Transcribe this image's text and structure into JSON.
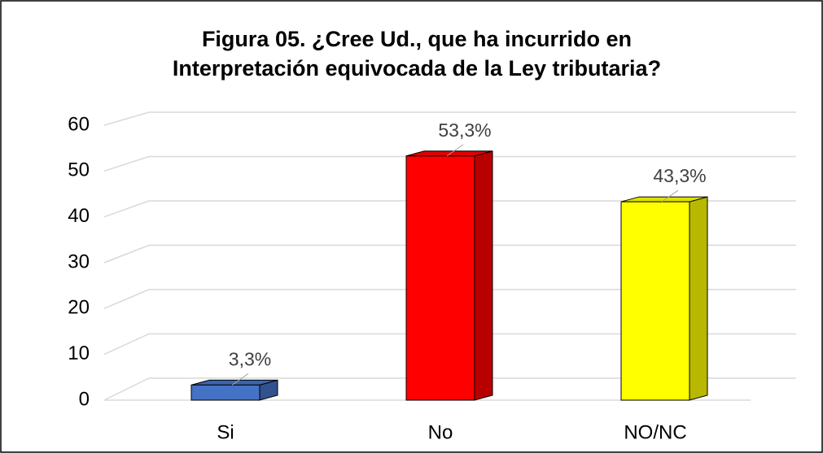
{
  "chart_data": {
    "type": "bar",
    "title": [
      "Figura 05. ¿Cree Ud., que ha incurrido en",
      "Interpretación equivocada de la Ley tributaria?"
    ],
    "categories": [
      "Si",
      "No",
      "NO/NC"
    ],
    "values": [
      3.3,
      53.3,
      43.3
    ],
    "value_labels": [
      "3,3%",
      "53,3%",
      "43,3%"
    ],
    "colors": [
      "#4472c4",
      "#ff0000",
      "#ffff00"
    ],
    "ylim": [
      0,
      60
    ],
    "yticks": [
      0,
      10,
      20,
      30,
      40,
      50,
      60
    ],
    "grid": true
  }
}
